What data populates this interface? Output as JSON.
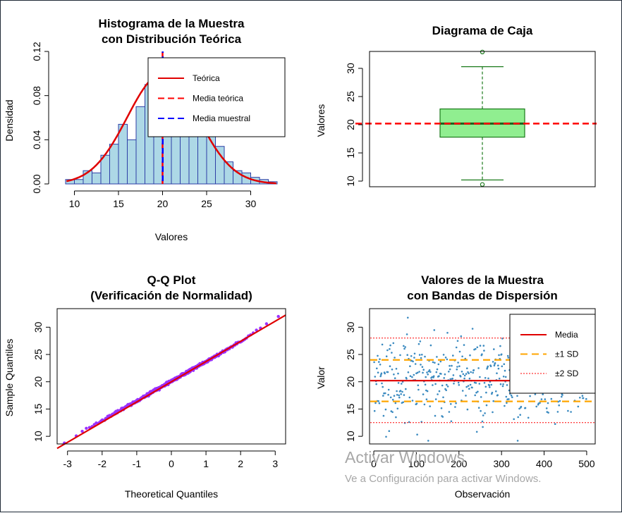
{
  "watermark": {
    "line1": "Activar Windows",
    "line2": "Ve a Configuración para activar Windows."
  },
  "colors": {
    "hist_fill": "#add8e6",
    "hist_border": "#2d3ea6",
    "theory": "#e00000",
    "mean_theory": "#ff0000",
    "mean_sample": "#0000ff",
    "box_fill": "#90ee90",
    "box_border": "#1a7a1a",
    "qq_points": "#9b30ff",
    "scatter_points": "#3a8ac0",
    "sd1": "#ffa500",
    "sd2": "#ff0000"
  },
  "chart_data": [
    {
      "type": "bar",
      "title": "Histograma de la Muestra\ncon Distribución Teórica",
      "title_lines": [
        "Histograma de la Muestra",
        "con Distribución Teórica"
      ],
      "xlabel": "Valores",
      "ylabel": "Densidad",
      "xlim": [
        9,
        33
      ],
      "ylim": [
        0,
        0.12
      ],
      "xticks": [
        "10",
        "15",
        "20",
        "25",
        "30"
      ],
      "yticks": [
        "0.00",
        "0.04",
        "0.08",
        "0.12"
      ],
      "bin_width": 1,
      "bins_start": [
        9,
        10,
        11,
        12,
        13,
        14,
        15,
        16,
        17,
        18,
        19,
        20,
        21,
        22,
        23,
        24,
        25,
        26,
        27,
        28,
        29,
        30,
        31,
        32
      ],
      "values": [
        0.004,
        0.004,
        0.012,
        0.01,
        0.026,
        0.036,
        0.054,
        0.04,
        0.07,
        0.09,
        0.094,
        0.098,
        0.092,
        0.092,
        0.08,
        0.066,
        0.048,
        0.034,
        0.02,
        0.012,
        0.01,
        0.006,
        0.004,
        0.002
      ],
      "theory_curve": {
        "mean": 20,
        "sd": 4
      },
      "mean_theory": 20,
      "mean_sample": 20.1,
      "legend": {
        "position": "top-right",
        "entries": [
          "Teórica",
          "Media teórica",
          "Media muestral"
        ]
      }
    },
    {
      "type": "box",
      "title": "Diagrama de Caja",
      "ylabel": "Valores",
      "ylim": [
        9,
        33
      ],
      "yticks": [
        "10",
        "15",
        "20",
        "25",
        "30"
      ],
      "q1": 17.8,
      "median": 20.2,
      "q3": 22.8,
      "whisker_low": 10.2,
      "whisker_high": 30.3,
      "outliers": [
        32.9,
        9.4
      ],
      "reference_line": 20.2
    },
    {
      "type": "scatter",
      "title": "Q-Q Plot\n(Verificación de Normalidad)",
      "title_lines": [
        "Q-Q Plot",
        "(Verificación de Normalidad)"
      ],
      "xlabel": "Theoretical Quantiles",
      "ylabel": "Sample Quantiles",
      "xlim": [
        -3.3,
        3.3
      ],
      "ylim": [
        8.6,
        33.4
      ],
      "xticks": [
        "-3",
        "-2",
        "-1",
        "0",
        "1",
        "2",
        "3"
      ],
      "yticks": [
        "10",
        "15",
        "20",
        "25",
        "30"
      ],
      "line": {
        "intercept": 20.0,
        "slope": 3.7
      },
      "n": 500,
      "sample_mean": 20.1,
      "sample_sd": 3.6
    },
    {
      "type": "scatter",
      "title": "Valores de la Muestra\ncon Bandas de Dispersión",
      "title_lines": [
        "Valores de la Muestra",
        "con Bandas de Dispersión"
      ],
      "xlabel": "Observación",
      "ylabel": "Valor",
      "xlim": [
        -10,
        520
      ],
      "ylim": [
        8.6,
        33.4
      ],
      "xticks": [
        "0",
        "100",
        "200",
        "300",
        "400",
        "500"
      ],
      "yticks": [
        "10",
        "15",
        "20",
        "25",
        "30"
      ],
      "n": 500,
      "mean": 20.2,
      "sd1": [
        16.4,
        24.0
      ],
      "sd2": [
        12.5,
        28.0
      ],
      "legend": {
        "position": "top-right",
        "entries": [
          "Media",
          "±1 SD",
          "±2 SD"
        ]
      }
    }
  ]
}
